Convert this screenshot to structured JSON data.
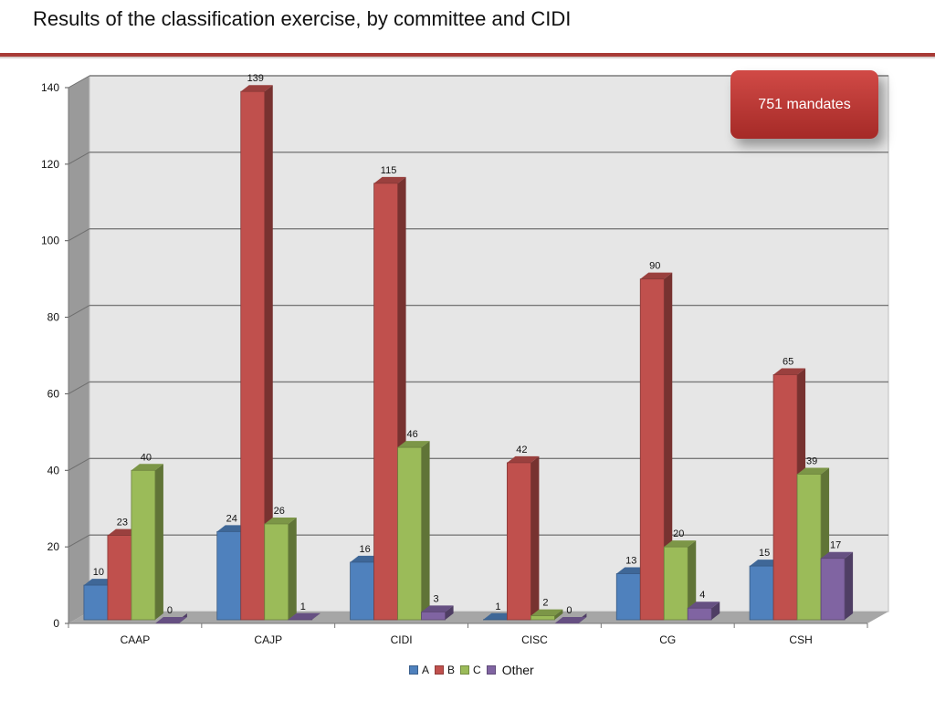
{
  "title": "Results of the classification exercise, by committee and CIDI",
  "badge": {
    "text": "751 mandates"
  },
  "colors": {
    "accent": "#a83a36"
  },
  "chart_data": {
    "type": "bar",
    "categories": [
      "CAAP",
      "CAJP",
      "CIDI",
      "CISC",
      "CG",
      "CSH"
    ],
    "series": [
      {
        "name": "A",
        "color": "#4f81bd",
        "values": [
          10,
          24,
          16,
          1,
          13,
          15
        ]
      },
      {
        "name": "B",
        "color": "#c0504d",
        "values": [
          23,
          139,
          115,
          42,
          90,
          65
        ]
      },
      {
        "name": "C",
        "color": "#9bbb59",
        "values": [
          40,
          26,
          46,
          2,
          20,
          39
        ]
      },
      {
        "name": "Other",
        "color": "#8064a2",
        "values": [
          0,
          1,
          3,
          0,
          4,
          17
        ]
      }
    ],
    "ylim": [
      0,
      140
    ],
    "yticks": [
      0,
      20,
      40,
      60,
      80,
      100,
      120,
      140
    ],
    "grid": true,
    "legend": "bottom",
    "xlabel": "",
    "ylabel": ""
  }
}
